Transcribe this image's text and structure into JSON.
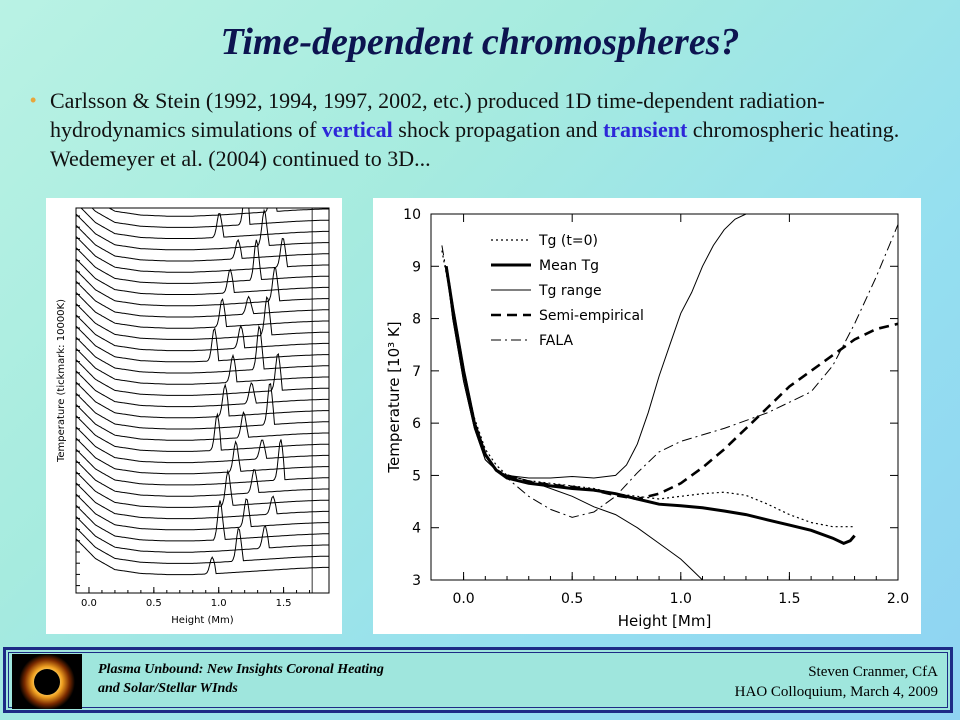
{
  "slide": {
    "title": "Time-dependent chromospheres?",
    "bullet": {
      "seg1": "Carlsson & Stein (1992, 1994, 1997, 2002, etc.) produced 1D time-dependent radiation-hydrodynamics simulations of ",
      "em1": "vertical",
      "seg2": " shock propagation and ",
      "em2": "transient",
      "seg3": " chromospheric heating.   Wedemeyer et al. (2004) continued to 3D..."
    },
    "footer": {
      "left_line1": "Plasma Unbound:  New Insights Coronal Heating",
      "left_line2": "and Solar/Stellar WInds",
      "right_line1": "Steven Cranmer,  CfA",
      "right_line2": "HAO Colloquium, March 4, 2009"
    },
    "colors": {
      "title": "#0d1450",
      "emphasis": "#2d27d8",
      "bullet": "#e8a63a",
      "footer_border": "#1d2b86"
    }
  },
  "chart_data": [
    {
      "type": "line",
      "xlabel": "Height (Mm)",
      "ylabel": "Temperature (tickmark: 10000K)",
      "xlim": [
        -0.1,
        1.85
      ],
      "xticks": [
        "0.0",
        "0.5",
        "1.0",
        "1.5"
      ],
      "xtick_values": [
        0.0,
        0.5,
        1.0,
        1.5
      ],
      "curves_count": 34,
      "profile": {
        "x": [
          -0.1,
          0.05,
          0.2,
          0.4,
          0.6,
          0.8,
          1.0,
          1.2,
          1.4,
          1.6,
          1.8
        ],
        "y": [
          4.2,
          2.4,
          1.4,
          1.05,
          0.95,
          0.95,
          1.05,
          1.2,
          1.35,
          1.5,
          1.6
        ]
      }
    },
    {
      "type": "line",
      "xlabel": "Height [Mm]",
      "ylabel": "Temperature [10³ K]",
      "xlim": [
        -0.15,
        2.0
      ],
      "ylim": [
        3,
        10
      ],
      "xticks": [
        "0.0",
        "0.5",
        "1.0",
        "1.5",
        "2.0"
      ],
      "xtick_values": [
        0.0,
        0.5,
        1.0,
        1.5,
        2.0
      ],
      "yticks": [
        "3",
        "4",
        "5",
        "6",
        "7",
        "8",
        "9",
        "10"
      ],
      "ytick_values": [
        3,
        4,
        5,
        6,
        7,
        8,
        9,
        10
      ],
      "legend": [
        "Tg (t=0)",
        "Mean Tg",
        "Tg range",
        "Semi-empirical",
        "FALA"
      ],
      "series": [
        {
          "name": "Tg (t=0)",
          "style": "dotted",
          "x": [
            -0.1,
            -0.05,
            0.0,
            0.05,
            0.1,
            0.15,
            0.2,
            0.3,
            0.4,
            0.5,
            0.6,
            0.7,
            0.8,
            0.9,
            1.0,
            1.1,
            1.2,
            1.3,
            1.4,
            1.5,
            1.6,
            1.7,
            1.8
          ],
          "y": [
            9.3,
            8.2,
            7.0,
            6.1,
            5.5,
            5.2,
            5.0,
            4.9,
            4.85,
            4.8,
            4.75,
            4.65,
            4.6,
            4.55,
            4.6,
            4.65,
            4.68,
            4.62,
            4.45,
            4.25,
            4.1,
            4.02,
            4.02
          ]
        },
        {
          "name": "Mean Tg",
          "style": "thick",
          "x": [
            -0.08,
            -0.05,
            0.0,
            0.05,
            0.1,
            0.15,
            0.2,
            0.3,
            0.4,
            0.5,
            0.6,
            0.7,
            0.8,
            0.9,
            1.0,
            1.1,
            1.2,
            1.3,
            1.4,
            1.5,
            1.6,
            1.7,
            1.75,
            1.78,
            1.8
          ],
          "y": [
            9.0,
            8.2,
            7.0,
            6.0,
            5.4,
            5.1,
            4.95,
            4.85,
            4.8,
            4.75,
            4.72,
            4.65,
            4.55,
            4.45,
            4.42,
            4.38,
            4.32,
            4.25,
            4.15,
            4.05,
            3.95,
            3.8,
            3.7,
            3.75,
            3.85
          ]
        },
        {
          "name": "Tg range upper",
          "style": "thin",
          "x": [
            -0.08,
            -0.05,
            0.0,
            0.05,
            0.1,
            0.15,
            0.2,
            0.3,
            0.4,
            0.5,
            0.6,
            0.7,
            0.75,
            0.8,
            0.85,
            0.9,
            0.95,
            1.0,
            1.05,
            1.1,
            1.15,
            1.2,
            1.25,
            1.3
          ],
          "y": [
            9.0,
            8.0,
            6.8,
            5.9,
            5.3,
            5.1,
            5.0,
            4.95,
            4.95,
            4.98,
            4.95,
            5.0,
            5.2,
            5.6,
            6.2,
            6.9,
            7.5,
            8.1,
            8.5,
            9.0,
            9.4,
            9.7,
            9.9,
            10.0
          ]
        },
        {
          "name": "Tg range lower",
          "style": "thin",
          "x": [
            -0.08,
            -0.05,
            0.0,
            0.05,
            0.1,
            0.15,
            0.2,
            0.3,
            0.4,
            0.5,
            0.6,
            0.7,
            0.8,
            0.9,
            1.0,
            1.05,
            1.1
          ],
          "y": [
            9.0,
            8.0,
            6.8,
            5.9,
            5.3,
            5.1,
            5.0,
            4.9,
            4.75,
            4.6,
            4.4,
            4.25,
            4.0,
            3.7,
            3.4,
            3.2,
            3.0
          ]
        },
        {
          "name": "Semi-empirical",
          "style": "dashed",
          "x": [
            -0.08,
            -0.05,
            0.0,
            0.05,
            0.1,
            0.15,
            0.2,
            0.3,
            0.4,
            0.5,
            0.6,
            0.7,
            0.8,
            0.9,
            1.0,
            1.1,
            1.2,
            1.3,
            1.4,
            1.5,
            1.6,
            1.7,
            1.8,
            1.9,
            2.0
          ],
          "y": [
            9.0,
            8.2,
            7.0,
            6.0,
            5.4,
            5.1,
            5.0,
            4.88,
            4.82,
            4.78,
            4.72,
            4.62,
            4.55,
            4.65,
            4.85,
            5.15,
            5.5,
            5.9,
            6.3,
            6.7,
            7.0,
            7.3,
            7.6,
            7.8,
            7.9
          ]
        },
        {
          "name": "FALA",
          "style": "dashdot",
          "x": [
            -0.1,
            -0.05,
            0.0,
            0.05,
            0.1,
            0.15,
            0.2,
            0.3,
            0.4,
            0.5,
            0.6,
            0.7,
            0.8,
            0.9,
            1.0,
            1.2,
            1.4,
            1.6,
            1.7,
            1.8,
            1.9,
            2.0
          ],
          "y": [
            9.4,
            8.2,
            7.0,
            6.0,
            5.4,
            5.1,
            4.95,
            4.6,
            4.35,
            4.2,
            4.3,
            4.6,
            5.05,
            5.45,
            5.65,
            5.9,
            6.2,
            6.6,
            7.1,
            7.9,
            8.8,
            9.8
          ]
        }
      ]
    }
  ]
}
